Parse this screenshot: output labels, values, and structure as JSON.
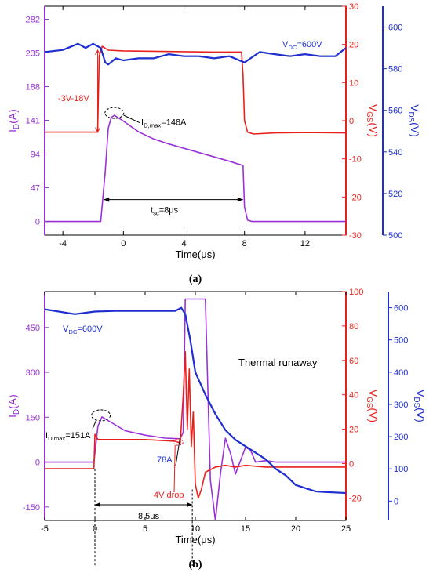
{
  "colors": {
    "id": "#9b30d9",
    "vgs": "#e8201c",
    "vds": "#1f2fcf",
    "annot": "#000000"
  },
  "chart_data": [
    {
      "type": "line",
      "caption": "(a)",
      "xlabel": "Time(μs)",
      "xlim": [
        -5.2,
        14.7
      ],
      "xticks": [
        -4,
        0,
        4,
        8,
        12
      ],
      "xtick_labels": [
        "-4",
        "0",
        "4",
        "8",
        "12"
      ],
      "axes": {
        "left": {
          "label_main": "I",
          "label_sub": "D",
          "label_tail": "(A)",
          "range": [
            -19,
            300
          ],
          "ticks": [
            0,
            47,
            94,
            141,
            188,
            235,
            282
          ],
          "tick_labels": [
            "0",
            "47",
            "94",
            "141",
            "188",
            "235",
            "282"
          ]
        },
        "right1": {
          "label_main": "V",
          "label_sub": "GS",
          "label_tail": "(V)",
          "range": [
            -30,
            30
          ],
          "ticks": [
            -30,
            -20,
            -10,
            0,
            10,
            20,
            30
          ],
          "tick_labels": [
            "-30",
            "-20",
            "-10",
            "0",
            "10",
            "20",
            "30"
          ]
        },
        "right2": {
          "label_main": "V",
          "label_sub": "DS",
          "label_tail": "(V)",
          "range": [
            500,
            610
          ],
          "ticks": [
            500,
            520,
            540,
            560,
            580,
            600
          ],
          "tick_labels": [
            "500",
            "520",
            "540",
            "560",
            "580",
            "600"
          ]
        }
      },
      "series": [
        {
          "key": "id",
          "axis": "left",
          "x": [
            -5.2,
            -1.5,
            -1.2,
            -1.0,
            -0.8,
            -0.6,
            0,
            1,
            2,
            3,
            4,
            5,
            6,
            7,
            7.9,
            8.0,
            8.2,
            8.5,
            10,
            12,
            14.7
          ],
          "y": [
            0,
            0,
            70,
            130,
            145,
            148,
            140,
            125,
            115,
            108,
            102,
            96,
            90,
            84,
            78,
            20,
            2,
            0,
            0,
            0,
            0
          ]
        },
        {
          "key": "vgs",
          "axis": "right1",
          "x": [
            -5.2,
            -1.7,
            -1.6,
            -1.4,
            -1.0,
            0,
            2,
            4,
            6,
            7.8,
            7.9,
            8.0,
            8.2,
            8.6,
            10,
            12,
            14.7
          ],
          "y": [
            -3,
            -3,
            17,
            19.5,
            18.5,
            18.3,
            18.2,
            18.1,
            18,
            18,
            12,
            0,
            -3,
            -3.5,
            -3.2,
            -3.1,
            -3.2
          ]
        },
        {
          "key": "vds",
          "axis": "right2",
          "x": [
            -5.2,
            -4,
            -3,
            -2.5,
            -2,
            -1.5,
            -1.2,
            -1,
            -0.5,
            0,
            1,
            2,
            3,
            4,
            5,
            6,
            7,
            8,
            9,
            10,
            11,
            12,
            13,
            14,
            14.7
          ],
          "y": [
            588,
            589,
            592,
            590,
            592,
            590,
            583,
            582,
            585,
            584,
            585,
            585,
            587,
            586,
            586,
            585,
            586,
            583,
            588,
            587,
            586,
            587,
            586,
            586,
            590
          ]
        }
      ],
      "annotations": {
        "vdc_main": "V",
        "vdc_sub": "DC",
        "vdc_tail": "=600V",
        "swing": "-3V-18V",
        "idmax_main": "I",
        "idmax_sub": "D,max",
        "idmax_tail": "=148A",
        "tsc_main": "t",
        "tsc_sub": "sc",
        "tsc_tail": "=8μs"
      }
    },
    {
      "type": "line",
      "caption": "(b)",
      "xlabel": "Time(μs)",
      "xlim": [
        -5,
        25
      ],
      "xticks": [
        -5,
        0,
        5,
        10,
        15,
        20,
        25
      ],
      "xtick_labels": [
        "-5",
        "0",
        "5",
        "10",
        "15",
        "20",
        "25"
      ],
      "axes": {
        "left": {
          "label_main": "I",
          "label_sub": "D",
          "label_tail": "(A)",
          "range": [
            -195,
            570
          ],
          "ticks": [
            -150,
            0,
            150,
            300,
            450
          ],
          "tick_labels": [
            "-150",
            "0",
            "150",
            "300",
            "450"
          ]
        },
        "right1": {
          "label_main": "V",
          "label_sub": "GS",
          "label_tail": "(V)",
          "range": [
            -33,
            100
          ],
          "ticks": [
            -20,
            0,
            20,
            40,
            60,
            80,
            100
          ],
          "tick_labels": [
            "-20",
            "0",
            "20",
            "40",
            "60",
            "80",
            "100"
          ]
        },
        "right2": {
          "label_main": "V",
          "label_sub": "DS",
          "label_tail": "(V)",
          "range": [
            -60,
            650
          ],
          "ticks": [
            0,
            100,
            200,
            300,
            400,
            500,
            600
          ],
          "tick_labels": [
            "0",
            "100",
            "200",
            "300",
            "400",
            "500",
            "600"
          ]
        }
      },
      "series": [
        {
          "key": "id",
          "axis": "left",
          "x": [
            -5,
            -0.1,
            0,
            0.3,
            0.7,
            1.5,
            3,
            5,
            7,
            8.5,
            8.8,
            9.0,
            9.2,
            11.0,
            11.5,
            12,
            12.5,
            13,
            13.5,
            14,
            15,
            15.5,
            16,
            17,
            18,
            20,
            25
          ],
          "y": [
            0,
            0,
            30,
            120,
            151,
            135,
            105,
            90,
            80,
            78,
            100,
            545,
            545,
            545,
            -60,
            -195,
            -40,
            80,
            30,
            -40,
            50,
            40,
            0,
            5,
            0,
            0,
            0
          ]
        },
        {
          "key": "vgs",
          "axis": "right1",
          "x": [
            -5,
            -0.1,
            0,
            0.3,
            2,
            5,
            8,
            8.5,
            8.8,
            9.0,
            9.2,
            9.4,
            9.6,
            9.8,
            10.0,
            10.3,
            10.6,
            11,
            12,
            13,
            14,
            15,
            17,
            20,
            25
          ],
          "y": [
            -3,
            -3,
            17,
            14,
            14,
            14,
            13,
            12,
            40,
            65,
            20,
            55,
            10,
            30,
            -12,
            -20,
            -15,
            -5,
            -2,
            -1,
            -2,
            -1,
            -2,
            -2,
            -2
          ]
        },
        {
          "key": "vds",
          "axis": "right2",
          "x": [
            -5,
            -2,
            0,
            2,
            4,
            6,
            8,
            8.6,
            9.0,
            9.5,
            10,
            11,
            12,
            13,
            14,
            15,
            16,
            17,
            18,
            19,
            20,
            21,
            22,
            23,
            25
          ],
          "y": [
            595,
            580,
            588,
            590,
            590,
            590,
            590,
            600,
            580,
            500,
            400,
            330,
            270,
            220,
            190,
            170,
            150,
            130,
            100,
            80,
            50,
            40,
            30,
            28,
            25
          ]
        }
      ],
      "annotations": {
        "vdc_main": "V",
        "vdc_sub": "DC",
        "vdc_tail": "=600V",
        "runaway": "Thermal runaway",
        "idmax_main": "I",
        "idmax_sub": "D,max",
        "idmax_tail": "=151A",
        "peak78": "78A",
        "drop": "4V drop",
        "period": "8.5μs"
      }
    }
  ]
}
